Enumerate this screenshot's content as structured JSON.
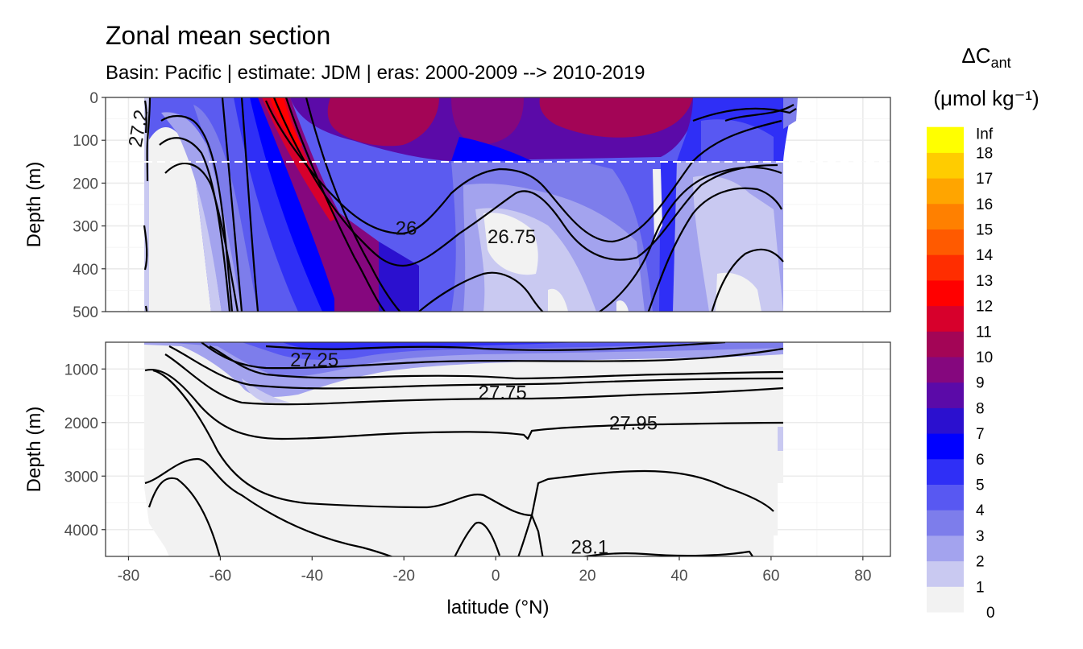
{
  "chart_data": {
    "type": "heatmap",
    "title": "Zonal mean section",
    "subtitle": "Basin: Pacific | estimate: JDM  | eras: 2000-2009 --> 2010-2019",
    "xlabel": "latitude (°N)",
    "ylabel_top": "Depth (m)",
    "ylabel_bottom": "Depth (m)",
    "x_ticks": [
      "-80",
      "-60",
      "-40",
      "-20",
      "0",
      "20",
      "40",
      "60",
      "80"
    ],
    "x_tick_values": [
      -80,
      -60,
      -40,
      -20,
      0,
      20,
      40,
      60,
      80
    ],
    "xlim": [
      -85,
      86
    ],
    "top_panel": {
      "ylim": [
        0,
        500
      ],
      "y_ticks": [
        "0",
        "100",
        "200",
        "300",
        "400",
        "500"
      ],
      "y_tick_values": [
        0,
        100,
        200,
        300,
        400,
        500
      ],
      "mixed_layer_depth": 150
    },
    "bottom_panel": {
      "ylim": [
        500,
        4500
      ],
      "y_ticks": [
        "1000",
        "2000",
        "3000",
        "4000"
      ],
      "y_tick_values": [
        1000,
        2000,
        3000,
        4000
      ]
    },
    "legend": {
      "title": "ΔC",
      "title_subscript": "ant",
      "units": "(μmol kg⁻¹)",
      "labels": [
        "0",
        "1",
        "2",
        "3",
        "4",
        "5",
        "6",
        "7",
        "8",
        "9",
        "10",
        "11",
        "12",
        "13",
        "14",
        "15",
        "16",
        "17",
        "18",
        "Inf"
      ],
      "colors": [
        "#f2f2f2",
        "#c9c9f1",
        "#a3a3ee",
        "#7d7deb",
        "#5858f2",
        "#2f2ff6",
        "#0000ff",
        "#2b10cf",
        "#5b0aa8",
        "#85077e",
        "#a30556",
        "#d7002c",
        "#ff0000",
        "#ff2d00",
        "#ff5a00",
        "#ff8000",
        "#ffa500",
        "#ffcc00",
        "#ffff00"
      ]
    },
    "contour_labels": [
      {
        "text": "27.2",
        "lat": -76.5,
        "depth": 60
      },
      {
        "text": "26",
        "lat": -19.5,
        "depth": 305
      },
      {
        "text": "26.75",
        "lat": 3.5,
        "depth": 325
      },
      {
        "text": "27.25",
        "lat": -39.5,
        "depth": 830
      },
      {
        "text": "27.75",
        "lat": 1.5,
        "depth": 1440
      },
      {
        "text": "27.95",
        "lat": 30,
        "depth": 2010
      },
      {
        "text": "28.1",
        "lat": 20.5,
        "depth": 4330
      }
    ],
    "colors": {
      "panel_bg": "#ffffff",
      "panel_border": "#333333",
      "no_data": "#f2f2f2",
      "mld_line": "#ffffff"
    }
  }
}
